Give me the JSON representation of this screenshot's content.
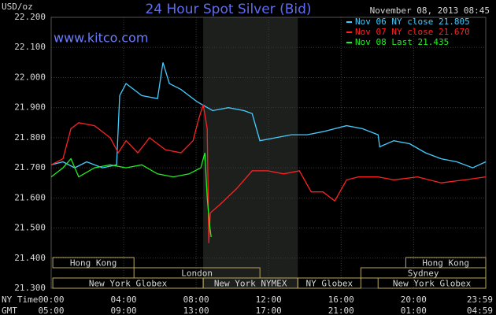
{
  "chart_data": {
    "type": "line",
    "title": "24 Hour Spot Silver (Bid)",
    "timestamp": "November 08, 2013 08:45",
    "website": "www.kitco.com",
    "y_label": "USD/oz",
    "x_label": "NY Time",
    "x2_label": "GMT",
    "ylim": [
      21.3,
      22.2
    ],
    "xlim": [
      0,
      23.983
    ],
    "yticks": [
      {
        "value": 21.3,
        "label": "21.300"
      },
      {
        "value": 21.4,
        "label": "21.400"
      },
      {
        "value": 21.5,
        "label": "21.500"
      },
      {
        "value": 21.6,
        "label": "21.600"
      },
      {
        "value": 21.7,
        "label": "21.700"
      },
      {
        "value": 21.8,
        "label": "21.800"
      },
      {
        "value": 21.9,
        "label": "21.900"
      },
      {
        "value": 22.0,
        "label": "22.000"
      },
      {
        "value": 22.1,
        "label": "22.100"
      },
      {
        "value": 22.2,
        "label": "22.200"
      }
    ],
    "xticks": [
      {
        "value": 0,
        "label": "00:00"
      },
      {
        "value": 4,
        "label": "04:00"
      },
      {
        "value": 8,
        "label": "08:00"
      },
      {
        "value": 12,
        "label": "12:00"
      },
      {
        "value": 16,
        "label": "16:00"
      },
      {
        "value": 20,
        "label": "20:00"
      },
      {
        "value": 23.983,
        "label": "23:59"
      }
    ],
    "x2ticks": [
      {
        "value": 0,
        "label": "05:00"
      },
      {
        "value": 4,
        "label": "09:00"
      },
      {
        "value": 8,
        "label": "13:00"
      },
      {
        "value": 12,
        "label": "17:00"
      },
      {
        "value": 16,
        "label": "21:00"
      },
      {
        "value": 20,
        "label": "01:00"
      },
      {
        "value": 23.983,
        "label": "04:59"
      }
    ],
    "grid": true,
    "highlight": [
      8.39,
      13.61
    ],
    "sessions": [
      [
        {
          "label": "Hong Kong",
          "start": 0.09,
          "end": 4.57
        },
        {
          "label": "Hong Kong",
          "start": 19.57,
          "end": 23.983
        }
      ],
      [
        {
          "label": "London",
          "start": 4.57,
          "end": 11.52
        },
        {
          "label": "Sydney",
          "start": 17.09,
          "end": 23.983
        }
      ],
      [
        {
          "label": "New York Globex",
          "start": 0.09,
          "end": 8.39
        },
        {
          "label": "New York NYMEX",
          "start": 8.39,
          "end": 13.61
        },
        {
          "label": "NY Globex",
          "start": 13.61,
          "end": 17.09
        },
        {
          "label": "New York Globex",
          "start": 18.04,
          "end": 23.983
        }
      ]
    ],
    "series": [
      {
        "name": "Nov 06 NY close 21.805",
        "color": "#44ccff",
        "x": [
          0,
          0.65,
          1.3,
          1.96,
          2.83,
          3.61,
          3.78,
          4.13,
          5.0,
          5.87,
          6.17,
          6.52,
          7.17,
          8.04,
          8.91,
          9.78,
          10.65,
          11.09,
          11.52,
          12.39,
          13.26,
          14.13,
          15.0,
          16.3,
          17.17,
          18.04,
          18.13,
          18.91,
          19.78,
          20.65,
          21.52,
          22.39,
          23.26,
          23.98
        ],
        "values": [
          21.71,
          21.72,
          21.7,
          21.72,
          21.7,
          21.71,
          21.94,
          21.98,
          21.94,
          21.93,
          22.05,
          21.98,
          21.96,
          21.92,
          21.89,
          21.9,
          21.89,
          21.88,
          21.79,
          21.8,
          21.81,
          21.81,
          21.82,
          21.84,
          21.83,
          21.81,
          21.77,
          21.79,
          21.78,
          21.75,
          21.73,
          21.72,
          21.7,
          21.72
        ]
      },
      {
        "name": "Nov 07 NY close 21.670",
        "color": "#ff2222",
        "x": [
          0,
          0.65,
          1.09,
          1.52,
          2.39,
          3.26,
          3.7,
          4.13,
          4.78,
          5.43,
          6.3,
          7.17,
          7.83,
          8.13,
          8.39,
          8.61,
          8.7,
          8.78,
          9.35,
          10.22,
          11.09,
          11.96,
          12.83,
          13.7,
          14.35,
          15.0,
          15.65,
          16.3,
          16.96,
          18.04,
          18.91,
          20.22,
          21.52,
          22.83,
          23.98
        ],
        "values": [
          21.71,
          21.73,
          21.83,
          21.85,
          21.84,
          21.8,
          21.75,
          21.79,
          21.75,
          21.8,
          21.76,
          21.75,
          21.79,
          21.86,
          21.91,
          21.83,
          21.45,
          21.55,
          21.58,
          21.63,
          21.69,
          21.69,
          21.68,
          21.69,
          21.62,
          21.62,
          21.59,
          21.66,
          21.67,
          21.67,
          21.66,
          21.67,
          21.65,
          21.66,
          21.67
        ]
      },
      {
        "name": "Nov 08 Last 21.435",
        "color": "#22ee22",
        "x": [
          0,
          0.65,
          1.09,
          1.52,
          2.39,
          3.26,
          4.13,
          5.0,
          5.87,
          6.74,
          7.61,
          8.26,
          8.48,
          8.61,
          8.74,
          8.83
        ],
        "values": [
          21.67,
          21.7,
          21.73,
          21.67,
          21.7,
          21.71,
          21.7,
          21.71,
          21.68,
          21.67,
          21.68,
          21.7,
          21.75,
          21.6,
          21.51,
          21.47
        ]
      }
    ]
  }
}
